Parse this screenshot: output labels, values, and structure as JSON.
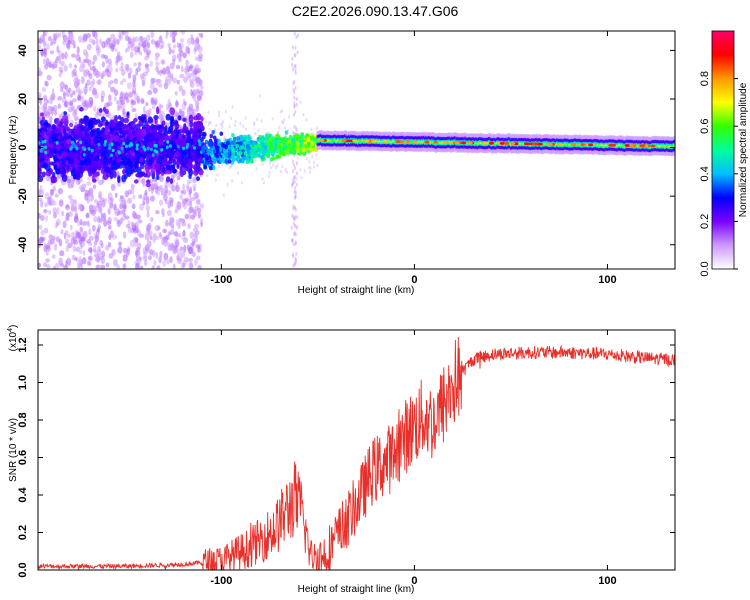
{
  "title": "C2E2.2026.090.13.47.G06",
  "chart_data": [
    {
      "type": "heatmap",
      "name": "spectrogram",
      "xlabel": "Height of straight line (km)",
      "ylabel": "Frequency (Hz)",
      "xlim": [
        -195,
        135
      ],
      "ylim": [
        -50,
        48
      ],
      "x_ticks": [
        -100,
        0,
        100
      ],
      "y_ticks": [
        -40,
        -20,
        0,
        20,
        40
      ],
      "x_tick_labels": [
        "-100",
        "0",
        "100"
      ],
      "y_tick_labels": [
        "-40",
        "-20",
        "0",
        "20",
        "40"
      ],
      "colorbar": {
        "label": "Normalized spectral amplitude",
        "range": [
          0.0,
          1.0
        ],
        "ticks": [
          0.0,
          0.2,
          0.4,
          0.6,
          0.8
        ],
        "tick_labels": [
          "0.0",
          "0.2",
          "0.4",
          "0.6",
          "0.8"
        ],
        "colormap": [
          "#ffffff",
          "#cc99ff",
          "#7a00ff",
          "#0000ff",
          "#00bfff",
          "#00ff99",
          "#33ff00",
          "#ffff00",
          "#ff9900",
          "#ff0000",
          "#ff0066"
        ]
      },
      "description_values": {
        "noise_region_x": [
          -195,
          -110
        ],
        "transition_x": [
          -110,
          -50
        ],
        "carrier_region_x": [
          -50,
          135
        ],
        "carrier_freq_hz": 0.5
      }
    },
    {
      "type": "line",
      "name": "snr",
      "xlabel": "Height of straight line (km)",
      "ylabel": "SNR (10 * v/v)",
      "scale_label": "(x10",
      "scale_exp": "4",
      "scale_close": ")",
      "xlim": [
        -195,
        135
      ],
      "ylim": [
        0.0,
        1.28
      ],
      "x_ticks": [
        -100,
        0,
        100
      ],
      "y_ticks": [
        0.0,
        0.2,
        0.4,
        0.6,
        0.8,
        1.0,
        1.2
      ],
      "x_tick_labels": [
        "-100",
        "0",
        "100"
      ],
      "y_tick_labels": [
        "0.0",
        "0.2",
        "0.4",
        "0.6",
        "0.8",
        "1.0",
        "1.2"
      ],
      "color": "#e8302a",
      "trend": [
        [
          -195,
          0.02
        ],
        [
          -150,
          0.02
        ],
        [
          -120,
          0.03
        ],
        [
          -100,
          0.05
        ],
        [
          -85,
          0.12
        ],
        [
          -72,
          0.22
        ],
        [
          -62,
          0.38
        ],
        [
          -58,
          0.3
        ],
        [
          -54,
          0.08
        ],
        [
          -48,
          0.06
        ],
        [
          -40,
          0.18
        ],
        [
          -30,
          0.35
        ],
        [
          -22,
          0.52
        ],
        [
          -12,
          0.6
        ],
        [
          -4,
          0.72
        ],
        [
          5,
          0.82
        ],
        [
          10,
          0.78
        ],
        [
          15,
          0.88
        ],
        [
          22,
          1.02
        ],
        [
          30,
          1.12
        ],
        [
          40,
          1.15
        ],
        [
          60,
          1.16
        ],
        [
          80,
          1.16
        ],
        [
          100,
          1.15
        ],
        [
          120,
          1.13
        ],
        [
          135,
          1.12
        ]
      ]
    }
  ]
}
